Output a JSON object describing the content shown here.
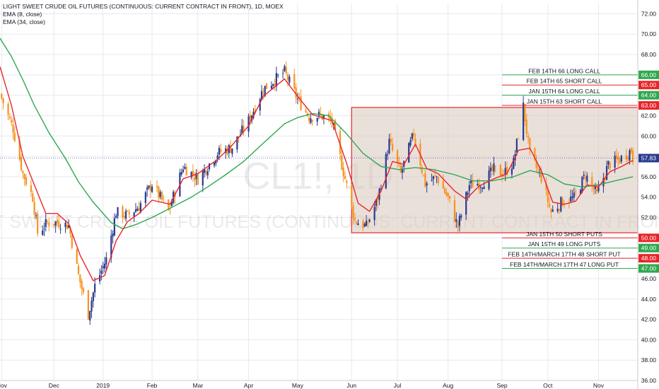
{
  "header": {
    "title": "LIGHT SWEET CRUDE OIL FUTURES (CONTINUOUS: CURRENT CONTRACT IN FRONT), 1D, MOEX",
    "ema_fast": "EMA (8, close)",
    "ema_slow": "EMA (34, close)"
  },
  "watermark": {
    "symbol": "CL1!, 1D",
    "name": "LIGHT SWEET CRUDE OIL FUTURES (CONTINUOUS: CURRENT CONTRACT IN FRONT)"
  },
  "colors": {
    "background": "#ffffff",
    "grid": "#e6e9ef",
    "up_candle": "#2a3b8f",
    "down_candle": "#f7931e",
    "ema_fast": "#e8262a",
    "ema_slow": "#2fa84f",
    "box_stroke": "#e8262a",
    "box_fill": "#d9c6bb",
    "long_line": "#2fa84f",
    "short_line": "#e8262a",
    "current_price": "#2a3b8f"
  },
  "chart_data": {
    "type": "candlestick",
    "x_axis": {
      "tick_labels": [
        "Nov",
        "Dec",
        "2019",
        "Feb",
        "Mar",
        "Apr",
        "May",
        "Jun",
        "Jul",
        "Aug",
        "Sep",
        "Oct",
        "Nov"
      ],
      "tick_dates": [
        "2018-11-01",
        "2018-12-03",
        "2019-01-02",
        "2019-02-01",
        "2019-03-01",
        "2019-04-01",
        "2019-05-01",
        "2019-06-03",
        "2019-07-01",
        "2019-08-01",
        "2019-09-03",
        "2019-10-01",
        "2019-11-01"
      ],
      "range": [
        "2018-10-31",
        "2019-11-25"
      ]
    },
    "y_axis": {
      "side": "right",
      "range": [
        36,
        73
      ],
      "ticks": [
        36.0,
        38.0,
        40.0,
        42.0,
        44.0,
        46.0,
        48.0,
        50.0,
        52.0,
        54.0,
        56.0,
        58.0,
        60.0,
        62.0,
        64.0,
        66.0,
        68.0,
        70.0,
        72.0
      ],
      "tick_labels": [
        "36.00",
        "38.00",
        "40.00",
        "42.00",
        "44.00",
        "46.00",
        "48.00",
        "50.00",
        "52.00",
        "54.00",
        "56.00",
        "58.00",
        "60.00",
        "62.00",
        "64.00",
        "66.00",
        "68.00",
        "70.00",
        "72.00"
      ]
    },
    "grid": true,
    "current_price": {
      "value": 57.83,
      "label": "57.83"
    },
    "price_path": [
      [
        "2018-11-01",
        63.7
      ],
      [
        "2018-11-08",
        60.7
      ],
      [
        "2018-11-14",
        56.3
      ],
      [
        "2018-11-20",
        54.0
      ],
      [
        "2018-11-23",
        50.5
      ],
      [
        "2018-11-29",
        51.5
      ],
      [
        "2018-12-06",
        51.5
      ],
      [
        "2018-12-12",
        51.2
      ],
      [
        "2018-12-18",
        46.3
      ],
      [
        "2018-12-24",
        42.5
      ],
      [
        "2018-12-28",
        45.3
      ],
      [
        "2019-01-04",
        47.9
      ],
      [
        "2019-01-10",
        52.5
      ],
      [
        "2019-01-17",
        52.2
      ],
      [
        "2019-01-24",
        53.1
      ],
      [
        "2019-02-01",
        55.3
      ],
      [
        "2019-02-11",
        52.6
      ],
      [
        "2019-02-20",
        57.0
      ],
      [
        "2019-03-01",
        55.8
      ],
      [
        "2019-03-13",
        58.3
      ],
      [
        "2019-03-22",
        58.9
      ],
      [
        "2019-04-01",
        61.5
      ],
      [
        "2019-04-10",
        64.6
      ],
      [
        "2019-04-23",
        66.3
      ],
      [
        "2019-05-01",
        63.6
      ],
      [
        "2019-05-08",
        61.9
      ],
      [
        "2019-05-15",
        62.0
      ],
      [
        "2019-05-22",
        61.4
      ],
      [
        "2019-05-29",
        56.5
      ],
      [
        "2019-06-05",
        51.7
      ],
      [
        "2019-06-12",
        51.1
      ],
      [
        "2019-06-19",
        53.8
      ],
      [
        "2019-06-26",
        59.4
      ],
      [
        "2019-07-03",
        56.3
      ],
      [
        "2019-07-11",
        60.2
      ],
      [
        "2019-07-18",
        55.3
      ],
      [
        "2019-07-25",
        56.0
      ],
      [
        "2019-08-01",
        53.9
      ],
      [
        "2019-08-07",
        51.1
      ],
      [
        "2019-08-14",
        55.2
      ],
      [
        "2019-08-22",
        55.4
      ],
      [
        "2019-08-29",
        56.7
      ],
      [
        "2019-09-04",
        56.3
      ],
      [
        "2019-09-10",
        57.4
      ],
      [
        "2019-09-16",
        62.9
      ],
      [
        "2019-09-20",
        58.1
      ],
      [
        "2019-09-27",
        55.9
      ],
      [
        "2019-10-03",
        52.5
      ],
      [
        "2019-10-10",
        53.6
      ],
      [
        "2019-10-17",
        53.9
      ],
      [
        "2019-10-24",
        56.2
      ],
      [
        "2019-10-31",
        54.2
      ],
      [
        "2019-11-07",
        57.2
      ],
      [
        "2019-11-14",
        57.7
      ],
      [
        "2019-11-21",
        58.6
      ],
      [
        "2019-11-22",
        57.83
      ]
    ],
    "ema_fast": {
      "name": "EMA (8, close)",
      "points": [
        [
          "2018-10-31",
          66.8
        ],
        [
          "2018-11-07",
          63.0
        ],
        [
          "2018-11-14",
          58.0
        ],
        [
          "2018-11-21",
          55.2
        ],
        [
          "2018-11-28",
          52.4
        ],
        [
          "2018-12-05",
          52.4
        ],
        [
          "2018-12-12",
          51.4
        ],
        [
          "2018-12-19",
          48.3
        ],
        [
          "2018-12-27",
          45.8
        ],
        [
          "2019-01-03",
          46.3
        ],
        [
          "2019-01-10",
          49.7
        ],
        [
          "2019-01-17",
          51.6
        ],
        [
          "2019-01-24",
          52.4
        ],
        [
          "2019-02-01",
          53.7
        ],
        [
          "2019-02-12",
          53.3
        ],
        [
          "2019-02-20",
          55.8
        ],
        [
          "2019-03-01",
          56.3
        ],
        [
          "2019-03-13",
          57.7
        ],
        [
          "2019-03-22",
          59.1
        ],
        [
          "2019-04-01",
          61.0
        ],
        [
          "2019-04-10",
          63.9
        ],
        [
          "2019-04-23",
          65.6
        ],
        [
          "2019-05-01",
          63.9
        ],
        [
          "2019-05-10",
          62.1
        ],
        [
          "2019-05-22",
          61.5
        ],
        [
          "2019-05-31",
          57.3
        ],
        [
          "2019-06-07",
          53.4
        ],
        [
          "2019-06-14",
          52.6
        ],
        [
          "2019-06-21",
          54.6
        ],
        [
          "2019-06-28",
          57.5
        ],
        [
          "2019-07-05",
          57.2
        ],
        [
          "2019-07-12",
          59.2
        ],
        [
          "2019-07-19",
          56.8
        ],
        [
          "2019-07-26",
          56.3
        ],
        [
          "2019-08-05",
          54.6
        ],
        [
          "2019-08-12",
          53.8
        ],
        [
          "2019-08-20",
          55.1
        ],
        [
          "2019-08-29",
          55.8
        ],
        [
          "2019-09-06",
          56.3
        ],
        [
          "2019-09-13",
          58.6
        ],
        [
          "2019-09-20",
          58.8
        ],
        [
          "2019-09-27",
          56.6
        ],
        [
          "2019-10-04",
          53.5
        ],
        [
          "2019-10-11",
          53.3
        ],
        [
          "2019-10-18",
          53.6
        ],
        [
          "2019-10-25",
          55.2
        ],
        [
          "2019-11-01",
          55.0
        ],
        [
          "2019-11-08",
          56.5
        ],
        [
          "2019-11-15",
          57.0
        ],
        [
          "2019-11-22",
          57.6
        ]
      ]
    },
    "ema_slow": {
      "name": "EMA (34, close)",
      "points": [
        [
          "2018-10-31",
          69.6
        ],
        [
          "2018-11-07",
          67.8
        ],
        [
          "2018-11-14",
          65.5
        ],
        [
          "2018-11-21",
          63.0
        ],
        [
          "2018-11-30",
          60.3
        ],
        [
          "2018-12-10",
          57.8
        ],
        [
          "2018-12-18",
          55.5
        ],
        [
          "2018-12-27",
          53.5
        ],
        [
          "2019-01-07",
          51.5
        ],
        [
          "2019-01-14",
          50.9
        ],
        [
          "2019-01-22",
          51.3
        ],
        [
          "2019-02-01",
          52.0
        ],
        [
          "2019-02-12",
          52.9
        ],
        [
          "2019-02-25",
          54.0
        ],
        [
          "2019-03-07",
          55.0
        ],
        [
          "2019-03-18",
          56.2
        ],
        [
          "2019-03-29",
          57.5
        ],
        [
          "2019-04-10",
          59.3
        ],
        [
          "2019-04-23",
          61.2
        ],
        [
          "2019-05-01",
          61.8
        ],
        [
          "2019-05-10",
          62.2
        ],
        [
          "2019-05-20",
          62.0
        ],
        [
          "2019-05-31",
          60.2
        ],
        [
          "2019-06-10",
          58.3
        ],
        [
          "2019-06-21",
          57.0
        ],
        [
          "2019-07-02",
          56.7
        ],
        [
          "2019-07-12",
          56.9
        ],
        [
          "2019-07-23",
          56.7
        ],
        [
          "2019-08-05",
          56.2
        ],
        [
          "2019-08-16",
          55.6
        ],
        [
          "2019-08-28",
          55.6
        ],
        [
          "2019-09-10",
          56.0
        ],
        [
          "2019-09-20",
          56.6
        ],
        [
          "2019-10-01",
          56.2
        ],
        [
          "2019-10-11",
          55.3
        ],
        [
          "2019-10-22",
          55.0
        ],
        [
          "2019-11-01",
          55.2
        ],
        [
          "2019-11-11",
          55.6
        ],
        [
          "2019-11-22",
          56.0
        ]
      ]
    },
    "range_box": {
      "start": "2019-06-03",
      "end": "2019-11-25",
      "low": 50.5,
      "high": 62.8
    },
    "option_levels": [
      {
        "label": "FEB 14TH 66 LONG CALL",
        "price": 66.0,
        "price_label": "66.00",
        "side": "long"
      },
      {
        "label": "FEB 14TH 65 SHORT CALL",
        "price": 65.0,
        "price_label": "65.00",
        "side": "short"
      },
      {
        "label": "JAN 15TH 64 LONG CALL",
        "price": 64.0,
        "price_label": "64.00",
        "side": "long"
      },
      {
        "label": "JAN 15TH 63 SHORT CALL",
        "price": 63.0,
        "price_label": "63.00",
        "side": "short"
      },
      {
        "label": "JAN 15TH 50 SHORT PUTS",
        "price": 50.0,
        "price_label": "50.00",
        "side": "short"
      },
      {
        "label": "JAN 15TH 49 LONG PUTS",
        "price": 49.0,
        "price_label": "49.00",
        "side": "long"
      },
      {
        "label": "FEB 14TH/MARCH 17TH 48 SHORT PUT",
        "price": 48.0,
        "price_label": "48.00",
        "side": "short"
      },
      {
        "label": "FEB 14TH/MARCH 17TH 47 LONG PUT",
        "price": 47.0,
        "price_label": "47.00",
        "side": "long"
      }
    ],
    "option_lines_start": "2019-09-03"
  }
}
